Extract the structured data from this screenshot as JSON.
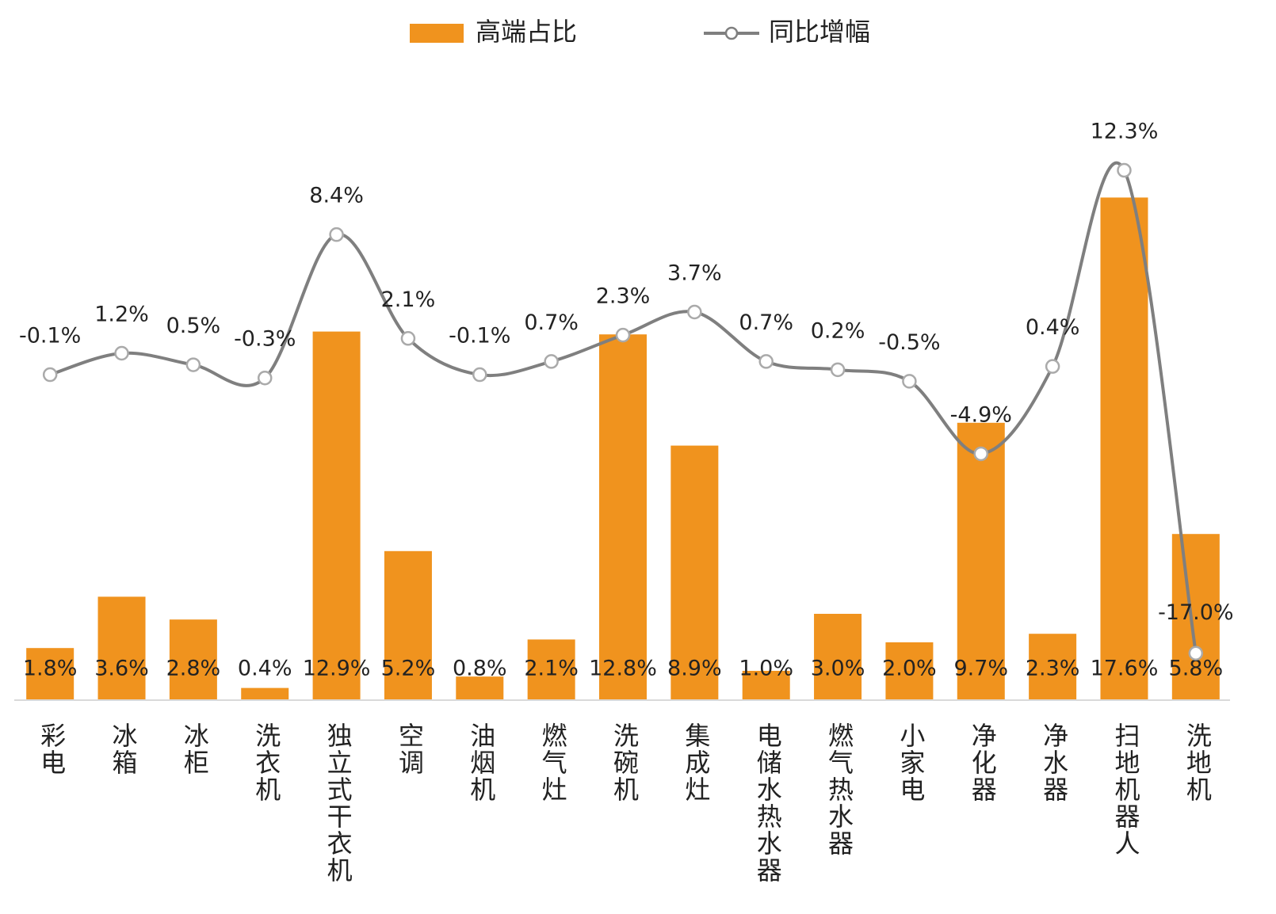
{
  "chart_data": {
    "type": "bar",
    "categories": [
      "彩电",
      "冰箱",
      "冰柜",
      "洗衣机",
      "独立式干衣机",
      "空调",
      "油烟机",
      "燃气灶",
      "洗碗机",
      "集成灶",
      "电储水热水器",
      "燃气热水器",
      "小家电",
      "净化器",
      "净水器",
      "扫地机器人",
      "洗地机"
    ],
    "series": [
      {
        "name": "高端占比",
        "type": "bar",
        "color": "#f0931e",
        "values": [
          1.8,
          3.6,
          2.8,
          0.4,
          12.9,
          5.2,
          0.8,
          2.1,
          12.8,
          8.9,
          1.0,
          3.0,
          2.0,
          9.7,
          2.3,
          17.6,
          5.8
        ],
        "value_labels": [
          "1.8%",
          "3.6%",
          "2.8%",
          "0.4%",
          "12.9%",
          "5.2%",
          "0.8%",
          "2.1%",
          "12.8%",
          "8.9%",
          "1.0%",
          "3.0%",
          "2.0%",
          "9.7%",
          "2.3%",
          "17.6%",
          "5.8%"
        ]
      },
      {
        "name": "同比增幅",
        "type": "line",
        "axis": "y2",
        "color": "#7f7f7f",
        "values": [
          -0.1,
          1.2,
          0.5,
          -0.3,
          8.4,
          2.1,
          -0.1,
          0.7,
          2.3,
          3.7,
          0.7,
          0.2,
          -0.5,
          -4.9,
          0.4,
          12.3,
          -17.0
        ],
        "value_labels": [
          "-0.1%",
          "1.2%",
          "0.5%",
          "-0.3%",
          "8.4%",
          "2.1%",
          "-0.1%",
          "0.7%",
          "2.3%",
          "3.7%",
          "0.7%",
          "0.2%",
          "-0.5%",
          "-4.9%",
          "0.4%",
          "12.3%",
          "-17.0%"
        ]
      }
    ],
    "ylim": [
      0,
      20
    ],
    "y2lim": [
      -19.8,
      14.8
    ],
    "legend": "top"
  }
}
